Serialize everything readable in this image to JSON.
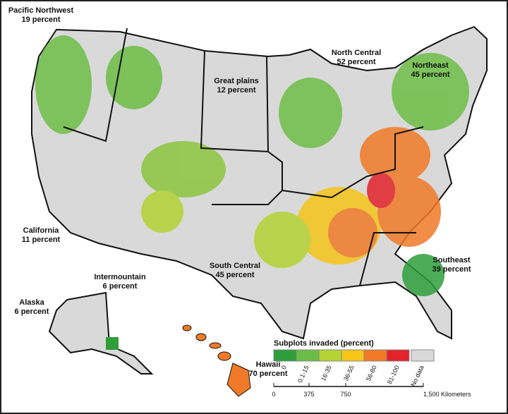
{
  "regions": [
    {
      "name": "Pacific Northwest",
      "value": "19 percent"
    },
    {
      "name": "Great plains",
      "value": "12 percent"
    },
    {
      "name": "North Central",
      "value": "52 percent"
    },
    {
      "name": "Northeast",
      "value": "45 percent"
    },
    {
      "name": "California",
      "value": "11 percent"
    },
    {
      "name": "Intermountain",
      "value": "6 percent"
    },
    {
      "name": "South Central",
      "value": "45 percent"
    },
    {
      "name": "Southeast",
      "value": "39 percent"
    },
    {
      "name": "Alaska",
      "value": "6 percent"
    },
    {
      "name": "Hawaii",
      "value": "70 percent"
    }
  ],
  "legend": {
    "title": "Subplots invaded (percent)",
    "items": [
      {
        "label": "0",
        "color": "#2e9e3a"
      },
      {
        "label": "0.1-15",
        "color": "#6cbd45"
      },
      {
        "label": "16-35",
        "color": "#b5d334"
      },
      {
        "label": "36-55",
        "color": "#f5c518"
      },
      {
        "label": "56-80",
        "color": "#f07a28"
      },
      {
        "label": "81-100",
        "color": "#e3222b"
      },
      {
        "label": "No data",
        "color": "#d9d9d9"
      }
    ]
  },
  "scale": {
    "labels": [
      "0",
      "375",
      "750",
      "1,500 Kilometers"
    ]
  }
}
